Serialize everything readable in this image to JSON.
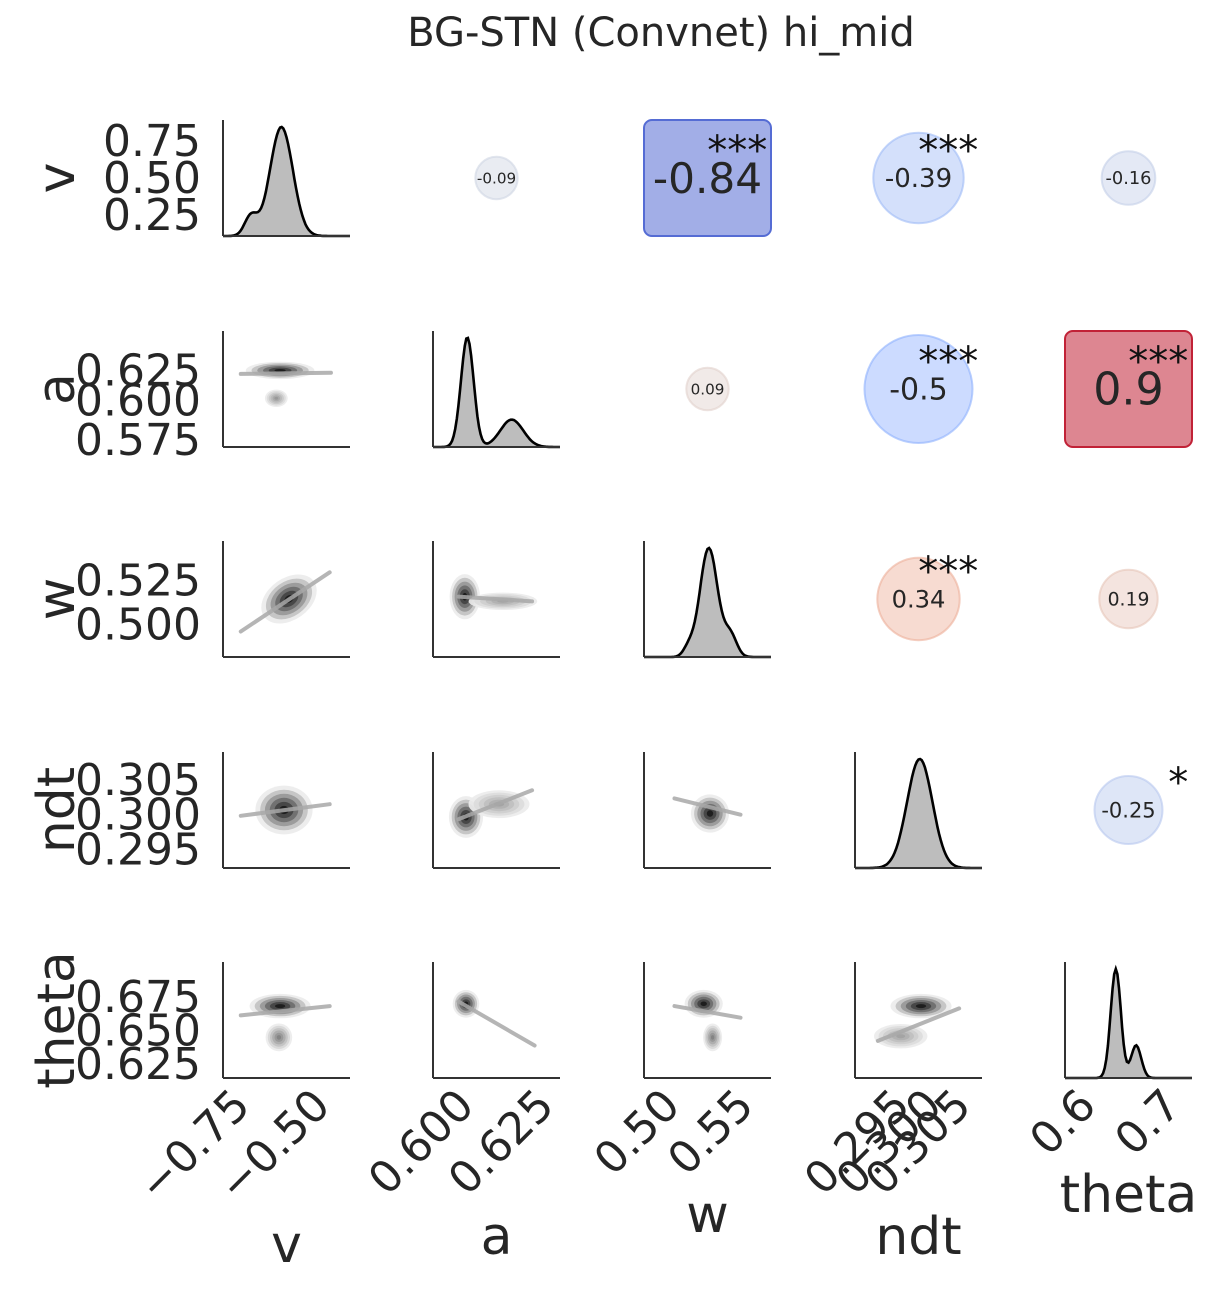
{
  "chart_data": {
    "type": "pairplot",
    "title": "BG-STN (Convnet)  hi_mid",
    "variables": [
      "v",
      "a",
      "w",
      "ndt",
      "theta"
    ],
    "axis_ticks": {
      "v": [
        "0.25",
        "0.50",
        "0.75"
      ],
      "a": [
        "0.575",
        "0.600",
        "0.625"
      ],
      "w": [
        "0.500",
        "0.525"
      ],
      "ndt": [
        "0.295",
        "0.300",
        "0.305"
      ],
      "theta": [
        "0.625",
        "0.650",
        "0.675"
      ]
    },
    "x_ticks": {
      "v": [
        "−0.75",
        "−0.50"
      ],
      "a": [
        "0.600",
        "0.625"
      ],
      "w": [
        "0.50",
        "0.55"
      ],
      "ndt": [
        "0.295",
        "0.300",
        "0.305"
      ],
      "theta": [
        "0.6",
        "0.7"
      ]
    },
    "correlations": [
      {
        "row": "v",
        "col": "a",
        "r": -0.09,
        "label": "-0.09",
        "stars": ""
      },
      {
        "row": "v",
        "col": "w",
        "r": -0.84,
        "label": "-0.84",
        "stars": "***"
      },
      {
        "row": "v",
        "col": "ndt",
        "r": -0.39,
        "label": "-0.39",
        "stars": "***"
      },
      {
        "row": "v",
        "col": "theta",
        "r": -0.16,
        "label": "-0.16",
        "stars": ""
      },
      {
        "row": "a",
        "col": "w",
        "r": 0.09,
        "label": "0.09",
        "stars": ""
      },
      {
        "row": "a",
        "col": "ndt",
        "r": -0.5,
        "label": "-0.5",
        "stars": "***"
      },
      {
        "row": "a",
        "col": "theta",
        "r": 0.9,
        "label": "0.9",
        "stars": "***"
      },
      {
        "row": "w",
        "col": "ndt",
        "r": 0.34,
        "label": "0.34",
        "stars": "***"
      },
      {
        "row": "w",
        "col": "theta",
        "r": 0.19,
        "label": "0.19",
        "stars": ""
      },
      {
        "row": "ndt",
        "col": "theta",
        "r": -0.25,
        "label": "-0.25",
        "stars": "*"
      }
    ],
    "colormap": "coolwarm",
    "diagonal": "kde",
    "lower": "kde-contour + regression line",
    "grid": false
  }
}
